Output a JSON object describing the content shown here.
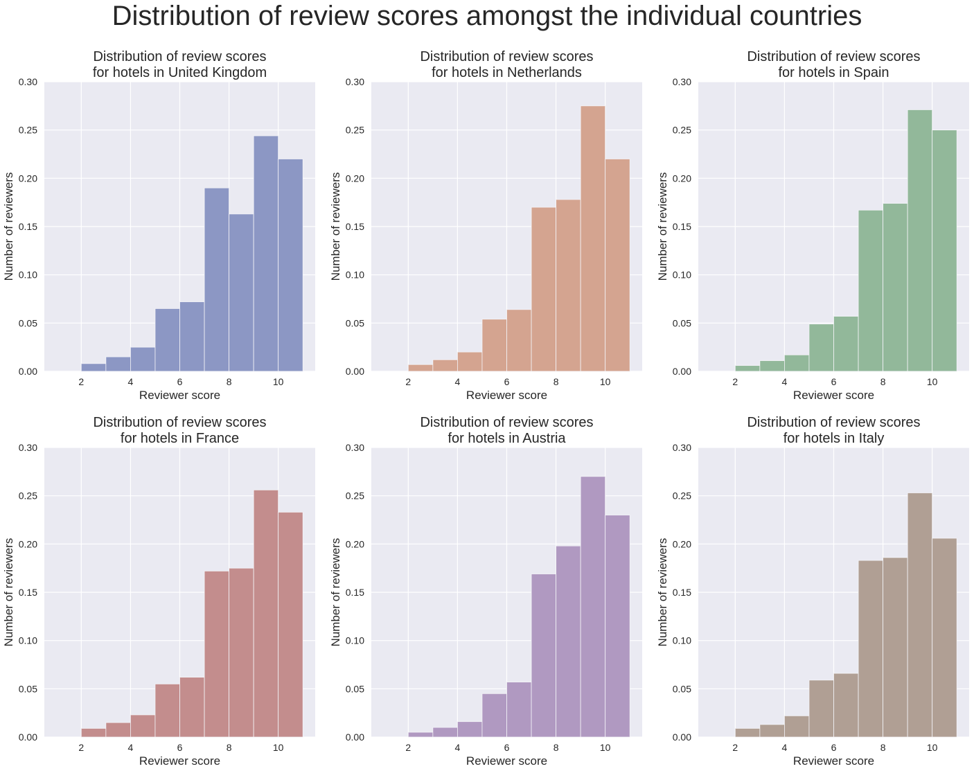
{
  "title": "Distribution of review scores amongst the individual countries",
  "chart_data": [
    {
      "type": "bar",
      "title": "Distribution of review scores\nfor hotels in United Kingdom",
      "xlabel": "Reviewer score",
      "ylabel": "Number of reviewers",
      "xlim": [
        0.5,
        11.5
      ],
      "ylim": [
        0,
        0.3
      ],
      "xticks": [
        2,
        4,
        6,
        8,
        10
      ],
      "yticks": [
        "0.00",
        "0.05",
        "0.10",
        "0.15",
        "0.20",
        "0.25",
        "0.30"
      ],
      "bin_edges": [
        2,
        3,
        4,
        5,
        6,
        7,
        8,
        9,
        10,
        11
      ],
      "values": [
        0.008,
        0.015,
        0.025,
        0.065,
        0.072,
        0.19,
        0.163,
        0.244,
        0.22
      ],
      "color": "#8c97c4",
      "grid": true
    },
    {
      "type": "bar",
      "title": "Distribution of review scores\nfor hotels in Netherlands",
      "xlabel": "Reviewer score",
      "ylabel": "Number of reviewers",
      "xlim": [
        0.5,
        11.5
      ],
      "ylim": [
        0,
        0.3
      ],
      "xticks": [
        2,
        4,
        6,
        8,
        10
      ],
      "yticks": [
        "0.00",
        "0.05",
        "0.10",
        "0.15",
        "0.20",
        "0.25",
        "0.30"
      ],
      "bin_edges": [
        2,
        3,
        4,
        5,
        6,
        7,
        8,
        9,
        10,
        11
      ],
      "values": [
        0.007,
        0.012,
        0.02,
        0.054,
        0.064,
        0.17,
        0.178,
        0.275,
        0.22
      ],
      "color": "#d4a490",
      "grid": true
    },
    {
      "type": "bar",
      "title": "Distribution of review scores\nfor hotels in Spain",
      "xlabel": "Reviewer score",
      "ylabel": "Number of reviewers",
      "xlim": [
        0.5,
        11.5
      ],
      "ylim": [
        0,
        0.3
      ],
      "xticks": [
        2,
        4,
        6,
        8,
        10
      ],
      "yticks": [
        "0.00",
        "0.05",
        "0.10",
        "0.15",
        "0.20",
        "0.25",
        "0.30"
      ],
      "bin_edges": [
        2,
        3,
        4,
        5,
        6,
        7,
        8,
        9,
        10,
        11
      ],
      "values": [
        0.006,
        0.011,
        0.017,
        0.049,
        0.057,
        0.167,
        0.174,
        0.271,
        0.25
      ],
      "color": "#92b89a",
      "grid": true
    },
    {
      "type": "bar",
      "title": "Distribution of review scores\nfor hotels in France",
      "xlabel": "Reviewer score",
      "ylabel": "Number of reviewers",
      "xlim": [
        0.5,
        11.5
      ],
      "ylim": [
        0,
        0.3
      ],
      "xticks": [
        2,
        4,
        6,
        8,
        10
      ],
      "yticks": [
        "0.00",
        "0.05",
        "0.10",
        "0.15",
        "0.20",
        "0.25",
        "0.30"
      ],
      "bin_edges": [
        2,
        3,
        4,
        5,
        6,
        7,
        8,
        9,
        10,
        11
      ],
      "values": [
        0.009,
        0.015,
        0.023,
        0.055,
        0.062,
        0.172,
        0.175,
        0.256,
        0.233
      ],
      "color": "#c38d8d",
      "grid": true
    },
    {
      "type": "bar",
      "title": "Distribution of review scores\nfor hotels in Austria",
      "xlabel": "Reviewer score",
      "ylabel": "Number of reviewers",
      "xlim": [
        0.5,
        11.5
      ],
      "ylim": [
        0,
        0.3
      ],
      "xticks": [
        2,
        4,
        6,
        8,
        10
      ],
      "yticks": [
        "0.00",
        "0.05",
        "0.10",
        "0.15",
        "0.20",
        "0.25",
        "0.30"
      ],
      "bin_edges": [
        2,
        3,
        4,
        5,
        6,
        7,
        8,
        9,
        10,
        11
      ],
      "values": [
        0.005,
        0.01,
        0.016,
        0.045,
        0.057,
        0.169,
        0.198,
        0.27,
        0.23
      ],
      "color": "#b099c1",
      "grid": true
    },
    {
      "type": "bar",
      "title": "Distribution of review scores\nfor hotels in Italy",
      "xlabel": "Reviewer score",
      "ylabel": "Number of reviewers",
      "xlim": [
        0.5,
        11.5
      ],
      "ylim": [
        0,
        0.3
      ],
      "xticks": [
        2,
        4,
        6,
        8,
        10
      ],
      "yticks": [
        "0.00",
        "0.05",
        "0.10",
        "0.15",
        "0.20",
        "0.25",
        "0.30"
      ],
      "bin_edges": [
        2,
        3,
        4,
        5,
        6,
        7,
        8,
        9,
        10,
        11
      ],
      "values": [
        0.009,
        0.013,
        0.022,
        0.059,
        0.066,
        0.183,
        0.186,
        0.253,
        0.206
      ],
      "color": "#b09f94",
      "grid": true
    }
  ]
}
